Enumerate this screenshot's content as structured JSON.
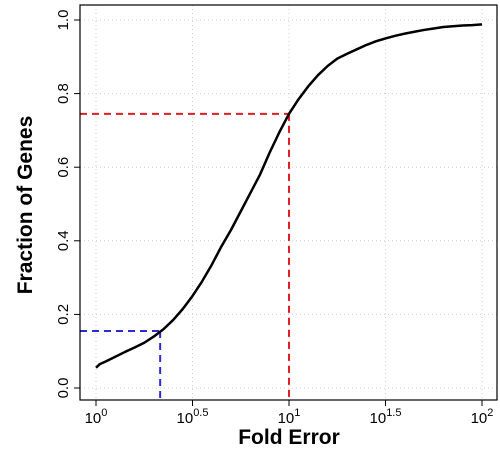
{
  "chart_data": {
    "type": "line",
    "title": "",
    "xlabel": "Fold Error",
    "ylabel": "Fraction of Genes",
    "x_scale": "log10",
    "xlim": [
      1,
      100
    ],
    "ylim": [
      0,
      1
    ],
    "grid": true,
    "x_ticks": [
      {
        "value": 1,
        "base": "10",
        "exp": "0"
      },
      {
        "value": 3.1623,
        "base": "10",
        "exp": "0.5"
      },
      {
        "value": 10,
        "base": "10",
        "exp": "1"
      },
      {
        "value": 31.623,
        "base": "10",
        "exp": "1.5"
      },
      {
        "value": 100,
        "base": "10",
        "exp": "2"
      }
    ],
    "y_ticks": [
      {
        "value": 0,
        "label": "0.0"
      },
      {
        "value": 0.2,
        "label": "0.2"
      },
      {
        "value": 0.4,
        "label": "0.4"
      },
      {
        "value": 0.6,
        "label": "0.6"
      },
      {
        "value": 0.8,
        "label": "0.8"
      },
      {
        "value": 1.0,
        "label": "1.0"
      }
    ],
    "series": [
      {
        "color": "#000000",
        "x": [
          1,
          1.047,
          1.122,
          1.259,
          1.413,
          1.585,
          1.778,
          1.995,
          2.239,
          2.512,
          2.818,
          3.162,
          3.548,
          3.981,
          4.467,
          5.012,
          5.623,
          6.31,
          7.079,
          7.943,
          8.913,
          10,
          11.22,
          12.59,
          14.13,
          15.85,
          17.78,
          19.95,
          22.39,
          25.12,
          28.18,
          31.62,
          35.48,
          39.81,
          44.67,
          50.12,
          56.23,
          63.1,
          70.79,
          79.43,
          89.13,
          100
        ],
        "y": [
          0.055,
          0.065,
          0.072,
          0.085,
          0.098,
          0.11,
          0.123,
          0.14,
          0.16,
          0.185,
          0.215,
          0.25,
          0.29,
          0.335,
          0.385,
          0.43,
          0.48,
          0.53,
          0.58,
          0.64,
          0.695,
          0.745,
          0.785,
          0.82,
          0.85,
          0.875,
          0.895,
          0.908,
          0.92,
          0.932,
          0.942,
          0.95,
          0.957,
          0.963,
          0.968,
          0.973,
          0.977,
          0.981,
          0.983,
          0.985,
          0.986,
          0.988
        ]
      }
    ],
    "reference_lines": [
      {
        "color": "#2b2bd6",
        "x": 2.15,
        "y": 0.155
      },
      {
        "color": "#e02020",
        "x": 10,
        "y": 0.745
      }
    ]
  }
}
